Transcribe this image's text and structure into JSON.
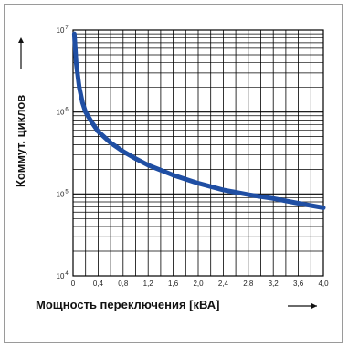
{
  "chart_data": {
    "type": "line",
    "xlabel": "Мощность переключения [кВА]",
    "ylabel": "Коммут. циклов",
    "xlim": [
      0,
      4.0
    ],
    "ylim": [
      10000,
      10000000
    ],
    "yscale": "log",
    "grid": true,
    "x_ticks": [
      "0",
      "0,4",
      "0,8",
      "1,2",
      "1,6",
      "2,0",
      "2,4",
      "2,8",
      "3,2",
      "3,6",
      "4,0"
    ],
    "y_ticks": [
      {
        "base": "10",
        "exp": "4"
      },
      {
        "base": "10",
        "exp": "5"
      },
      {
        "base": "10",
        "exp": "6"
      },
      {
        "base": "10",
        "exp": "7"
      }
    ],
    "series": [
      {
        "color": "#1f4ea3",
        "x": [
          0.02,
          0.05,
          0.1,
          0.15,
          0.2,
          0.3,
          0.4,
          0.6,
          0.8,
          1.0,
          1.2,
          1.6,
          2.0,
          2.4,
          2.8,
          3.2,
          3.6,
          4.0
        ],
        "y": [
          9000000,
          4000000,
          2000000,
          1300000,
          1000000,
          750000,
          580000,
          420000,
          330000,
          270000,
          225000,
          170000,
          135000,
          112000,
          98000,
          88000,
          77000,
          68000
        ]
      }
    ]
  }
}
